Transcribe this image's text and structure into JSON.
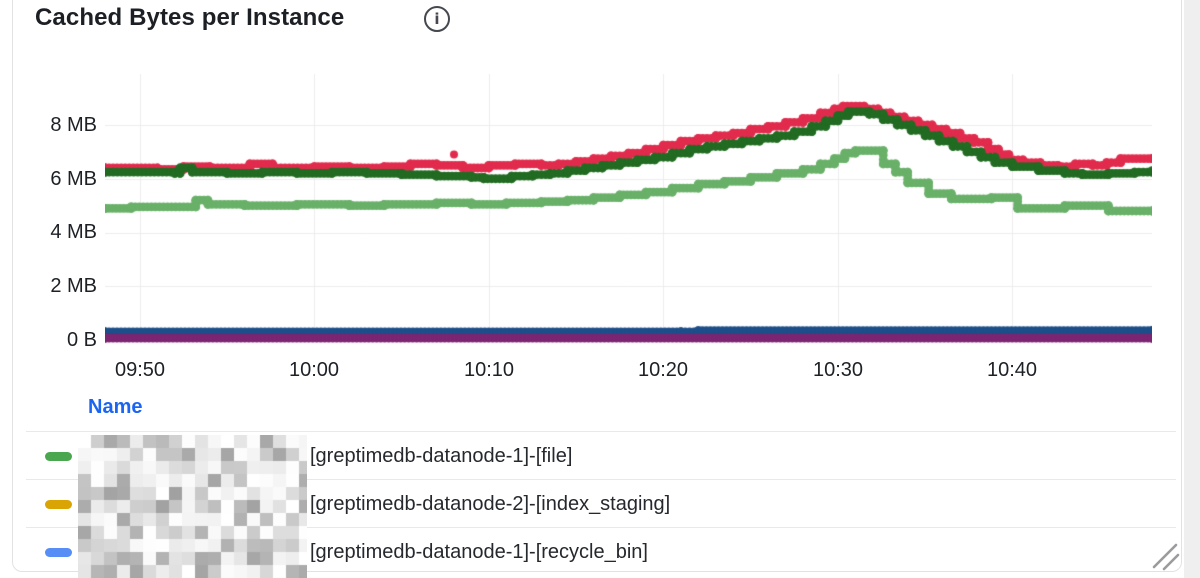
{
  "panel": {
    "title": "Cached Bytes per Instance",
    "info_icon_glyph": "i"
  },
  "chart_data": {
    "type": "line",
    "style": "dotted-step-points",
    "title": "Cached Bytes per Instance",
    "unit": "bytes",
    "grid": true,
    "x_axis": {
      "start_time": "09:48",
      "end_time": "10:48",
      "tick_labels": [
        "09:50",
        "10:00",
        "10:10",
        "10:20",
        "10:30",
        "10:40"
      ],
      "tick_minutes": [
        2,
        12,
        22,
        32,
        42,
        52
      ],
      "range_minutes": [
        0,
        60
      ]
    },
    "y_axis": {
      "tick_labels": [
        "0 B",
        "2 MB",
        "4 MB",
        "6 MB",
        "8 MB"
      ],
      "tick_values_mb": [
        0,
        2,
        4,
        6,
        8
      ],
      "ylim_mb": [
        0,
        10.1
      ]
    },
    "series": [
      {
        "name": "red",
        "color": "#e12b4d",
        "points": [
          [
            0,
            6.4
          ],
          [
            3,
            6.35
          ],
          [
            4.5,
            6.45
          ],
          [
            6,
            6.4
          ],
          [
            8.3,
            6.55
          ],
          [
            9.6,
            6.4
          ],
          [
            12,
            6.45
          ],
          [
            14,
            6.4
          ],
          [
            16,
            6.45
          ],
          [
            17.5,
            6.55
          ],
          [
            19,
            6.5
          ],
          [
            20.5,
            6.4
          ],
          [
            22,
            6.5
          ],
          [
            23.5,
            6.55
          ],
          [
            25,
            6.5
          ],
          [
            26,
            6.55
          ],
          [
            27,
            6.65
          ],
          [
            28,
            6.75
          ],
          [
            29,
            6.85
          ],
          [
            30,
            6.95
          ],
          [
            31,
            7.1
          ],
          [
            32,
            7.25
          ],
          [
            33,
            7.4
          ],
          [
            34,
            7.5
          ],
          [
            35,
            7.6
          ],
          [
            36,
            7.7
          ],
          [
            37,
            7.85
          ],
          [
            38,
            7.95
          ],
          [
            39,
            8.1
          ],
          [
            40,
            8.25
          ],
          [
            41,
            8.45
          ],
          [
            41.8,
            8.6
          ],
          [
            42.3,
            8.7
          ],
          [
            43.5,
            8.6
          ],
          [
            44.3,
            8.45
          ],
          [
            45,
            8.3
          ],
          [
            45.8,
            8.15
          ],
          [
            46.6,
            8.0
          ],
          [
            47.4,
            7.85
          ],
          [
            48.2,
            7.7
          ],
          [
            49,
            7.5
          ],
          [
            49.8,
            7.35
          ],
          [
            50.6,
            7.1
          ],
          [
            51.2,
            6.9
          ],
          [
            51.8,
            6.7
          ],
          [
            52.6,
            6.6
          ],
          [
            53.6,
            6.5
          ],
          [
            54.6,
            6.45
          ],
          [
            55.6,
            6.55
          ],
          [
            56.6,
            6.5
          ],
          [
            57.4,
            6.6
          ],
          [
            58.2,
            6.75
          ],
          [
            60,
            6.75
          ]
        ]
      },
      {
        "name": "dark-green",
        "color": "#226b22",
        "points": [
          [
            0,
            6.25
          ],
          [
            4,
            6.2
          ],
          [
            4.3,
            6.4
          ],
          [
            5,
            6.25
          ],
          [
            7,
            6.2
          ],
          [
            9,
            6.25
          ],
          [
            11,
            6.2
          ],
          [
            13,
            6.25
          ],
          [
            15,
            6.2
          ],
          [
            17,
            6.15
          ],
          [
            19,
            6.1
          ],
          [
            21,
            6.05
          ],
          [
            21.7,
            6.0
          ],
          [
            23.3,
            6.1
          ],
          [
            24.5,
            6.15
          ],
          [
            25.5,
            6.2
          ],
          [
            26.5,
            6.3
          ],
          [
            27.5,
            6.4
          ],
          [
            28.5,
            6.5
          ],
          [
            29.5,
            6.6
          ],
          [
            30.5,
            6.7
          ],
          [
            31.5,
            6.8
          ],
          [
            32.5,
            6.95
          ],
          [
            33.5,
            7.1
          ],
          [
            34.5,
            7.2
          ],
          [
            35.5,
            7.3
          ],
          [
            36.5,
            7.4
          ],
          [
            37.5,
            7.5
          ],
          [
            38.5,
            7.6
          ],
          [
            39.5,
            7.75
          ],
          [
            40.5,
            7.95
          ],
          [
            41.3,
            8.15
          ],
          [
            42,
            8.35
          ],
          [
            42.6,
            8.5
          ],
          [
            43.8,
            8.4
          ],
          [
            44.6,
            8.2
          ],
          [
            45.4,
            8.0
          ],
          [
            46.2,
            7.8
          ],
          [
            47,
            7.6
          ],
          [
            47.8,
            7.4
          ],
          [
            48.6,
            7.2
          ],
          [
            49.4,
            7.0
          ],
          [
            50.2,
            6.8
          ],
          [
            51,
            6.6
          ],
          [
            52,
            6.45
          ],
          [
            53.5,
            6.3
          ],
          [
            55,
            6.2
          ],
          [
            56,
            6.15
          ],
          [
            57.5,
            6.2
          ],
          [
            59,
            6.25
          ],
          [
            60,
            6.3
          ]
        ]
      },
      {
        "name": "light-green",
        "color": "#69b069",
        "points": [
          [
            0,
            4.9
          ],
          [
            1.5,
            4.95
          ],
          [
            5.2,
            5.2
          ],
          [
            5.9,
            5.05
          ],
          [
            8,
            5.0
          ],
          [
            11,
            5.05
          ],
          [
            14,
            5.0
          ],
          [
            16,
            5.05
          ],
          [
            19,
            5.1
          ],
          [
            21,
            5.05
          ],
          [
            23,
            5.1
          ],
          [
            25,
            5.15
          ],
          [
            26.5,
            5.2
          ],
          [
            28,
            5.3
          ],
          [
            29.5,
            5.4
          ],
          [
            31,
            5.5
          ],
          [
            32.5,
            5.65
          ],
          [
            34,
            5.8
          ],
          [
            35.5,
            5.9
          ],
          [
            37,
            6.05
          ],
          [
            38.5,
            6.2
          ],
          [
            40,
            6.35
          ],
          [
            41,
            6.55
          ],
          [
            41.8,
            6.75
          ],
          [
            42.4,
            6.95
          ],
          [
            43,
            7.05
          ],
          [
            44.6,
            6.55
          ],
          [
            45.3,
            6.25
          ],
          [
            46,
            5.85
          ],
          [
            47.2,
            5.45
          ],
          [
            48.5,
            5.25
          ],
          [
            50.8,
            5.3
          ],
          [
            52.3,
            4.9
          ],
          [
            55,
            5.0
          ],
          [
            57.5,
            4.8
          ],
          [
            60,
            4.8
          ]
        ]
      },
      {
        "name": "navy-blue",
        "color": "#1d4e89",
        "points": [
          [
            0,
            0.3
          ],
          [
            33,
            0.3
          ],
          [
            34,
            0.35
          ],
          [
            60,
            0.35
          ]
        ]
      },
      {
        "name": "purple",
        "color": "#7c2572",
        "points": [
          [
            0,
            0.07
          ],
          [
            60,
            0.07
          ]
        ]
      }
    ],
    "outliers": [
      {
        "series": "red",
        "t": 20,
        "v": 6.9
      }
    ]
  },
  "legend": {
    "header": "Name",
    "rows": [
      {
        "marker_color": "#4ba74f",
        "prefix_redacted": true,
        "visible_label": "[greptimedb-datanode-1]-[file]"
      },
      {
        "marker_color": "#d9a404",
        "prefix_redacted": true,
        "visible_label": "[greptimedb-datanode-2]-[index_staging]"
      },
      {
        "marker_color": "#568ef5",
        "prefix_redacted": true,
        "visible_label": "[greptimedb-datanode-1]-[recycle_bin]"
      }
    ]
  }
}
